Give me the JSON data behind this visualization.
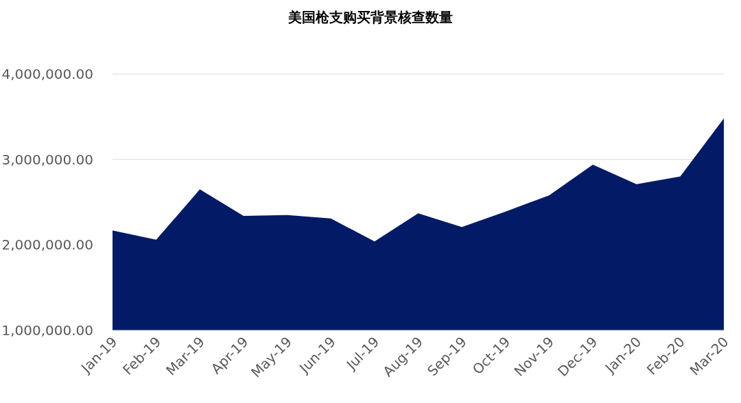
{
  "chart_data": {
    "type": "area",
    "title": "美国枪支购买背景核查数量",
    "categories": [
      "Jan-19",
      "Feb-19",
      "Mar-19",
      "Apr-19",
      "May-19",
      "Jun-19",
      "Jul-19",
      "Aug-19",
      "Sep-19",
      "Oct-19",
      "Nov-19",
      "Dec-19",
      "Jan-20",
      "Feb-20",
      "Mar-20"
    ],
    "series": [
      {
        "color": "#031b66",
        "values": [
          2170000,
          2060000,
          2650000,
          2340000,
          2350000,
          2310000,
          2040000,
          2370000,
          2210000,
          2390000,
          2580000,
          2940000,
          2710000,
          2800000,
          3480000
        ]
      }
    ],
    "ylim": [
      1000000,
      4000000
    ],
    "yticks": [
      {
        "value": 1000000,
        "label": "1,000,000.00"
      },
      {
        "value": 2000000,
        "label": "2,000,000.00"
      },
      {
        "value": 3000000,
        "label": "3,000,000.00"
      },
      {
        "value": 4000000,
        "label": "4,000,000.00"
      }
    ],
    "grid": "y"
  }
}
